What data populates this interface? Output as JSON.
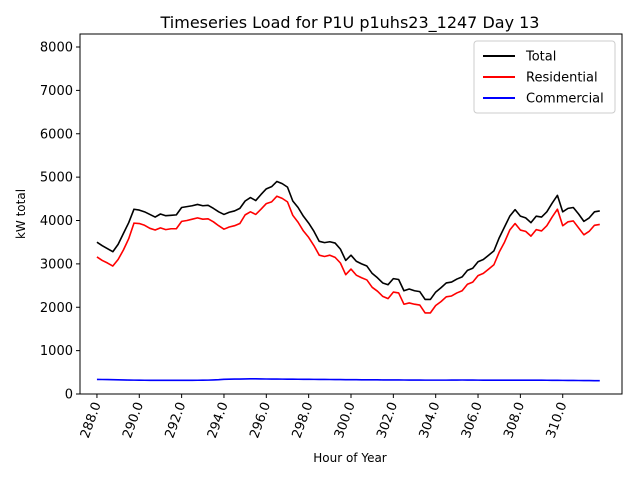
{
  "chart_data": {
    "type": "line",
    "title": "Timeseries Load for P1U p1uhs23_1247  Day 13",
    "xlabel": "Hour of Year",
    "ylabel": "kW total",
    "xlim": [
      287.2,
      312.8
    ],
    "ylim": [
      0,
      8300
    ],
    "x_ticks": [
      288,
      290,
      292,
      294,
      296,
      298,
      300,
      302,
      304,
      306,
      308,
      310
    ],
    "x_tick_labels": [
      "288.0",
      "290.0",
      "292.0",
      "294.0",
      "296.0",
      "298.0",
      "300.0",
      "302.0",
      "304.0",
      "306.0",
      "308.0",
      "310.0"
    ],
    "y_ticks": [
      0,
      1000,
      2000,
      3000,
      4000,
      5000,
      6000,
      7000,
      8000
    ],
    "y_tick_labels": [
      "0",
      "1000",
      "2000",
      "3000",
      "4000",
      "5000",
      "6000",
      "7000",
      "8000"
    ],
    "legend_position": "top-right",
    "x": [
      288.0,
      288.25,
      288.5,
      288.75,
      289.0,
      289.25,
      289.5,
      289.75,
      290.0,
      290.25,
      290.5,
      290.75,
      291.0,
      291.25,
      291.5,
      291.75,
      292.0,
      292.25,
      292.5,
      292.75,
      293.0,
      293.25,
      293.5,
      293.75,
      294.0,
      294.25,
      294.5,
      294.75,
      295.0,
      295.25,
      295.5,
      295.75,
      296.0,
      296.25,
      296.5,
      296.75,
      297.0,
      297.25,
      297.5,
      297.75,
      298.0,
      298.25,
      298.5,
      298.75,
      299.0,
      299.25,
      299.5,
      299.75,
      300.0,
      300.25,
      300.5,
      300.75,
      301.0,
      301.25,
      301.5,
      301.75,
      302.0,
      302.25,
      302.5,
      302.75,
      303.0,
      303.25,
      303.5,
      303.75,
      304.0,
      304.25,
      304.5,
      304.75,
      305.0,
      305.25,
      305.5,
      305.75,
      306.0,
      306.25,
      306.5,
      306.75,
      307.0,
      307.25,
      307.5,
      307.75,
      308.0,
      308.25,
      308.5,
      308.75,
      309.0,
      309.25,
      309.5,
      309.75,
      310.0,
      310.25,
      310.5,
      310.75,
      311.0,
      311.25,
      311.5,
      311.75
    ],
    "series": [
      {
        "name": "Total",
        "color": "#000000",
        "values": [
          3500,
          3420,
          3350,
          3280,
          3450,
          3700,
          3950,
          4260,
          4240,
          4200,
          4140,
          4080,
          4150,
          4110,
          4120,
          4130,
          4300,
          4320,
          4340,
          4370,
          4340,
          4350,
          4280,
          4200,
          4140,
          4190,
          4220,
          4280,
          4450,
          4530,
          4460,
          4600,
          4730,
          4780,
          4900,
          4850,
          4770,
          4450,
          4300,
          4100,
          3940,
          3750,
          3520,
          3490,
          3510,
          3480,
          3340,
          3080,
          3200,
          3060,
          3000,
          2950,
          2780,
          2680,
          2560,
          2520,
          2660,
          2640,
          2380,
          2420,
          2380,
          2360,
          2180,
          2180,
          2350,
          2450,
          2560,
          2580,
          2650,
          2700,
          2850,
          2900,
          3050,
          3100,
          3200,
          3300,
          3600,
          3850,
          4100,
          4250,
          4100,
          4060,
          3950,
          4100,
          4080,
          4200,
          4400,
          4580,
          4200,
          4280,
          4300,
          4150,
          3980,
          4060,
          4200,
          4220
        ]
      },
      {
        "name": "Residential",
        "color": "#ff0000",
        "values": [
          3160,
          3080,
          3020,
          2950,
          3100,
          3320,
          3580,
          3940,
          3930,
          3890,
          3820,
          3780,
          3830,
          3790,
          3810,
          3810,
          3980,
          4000,
          4030,
          4060,
          4030,
          4040,
          3970,
          3880,
          3800,
          3850,
          3880,
          3930,
          4130,
          4200,
          4140,
          4260,
          4390,
          4430,
          4560,
          4510,
          4430,
          4120,
          3960,
          3760,
          3610,
          3420,
          3200,
          3170,
          3200,
          3150,
          3020,
          2750,
          2880,
          2740,
          2680,
          2630,
          2460,
          2370,
          2250,
          2200,
          2350,
          2330,
          2070,
          2100,
          2070,
          2050,
          1870,
          1870,
          2040,
          2130,
          2240,
          2260,
          2330,
          2380,
          2530,
          2580,
          2730,
          2780,
          2880,
          2980,
          3270,
          3500,
          3780,
          3930,
          3780,
          3750,
          3640,
          3790,
          3760,
          3880,
          4080,
          4260,
          3880,
          3970,
          3990,
          3830,
          3670,
          3750,
          3890,
          3910
        ]
      },
      {
        "name": "Commercial",
        "color": "#0000ff",
        "values": [
          335,
          334,
          332,
          330,
          328,
          325,
          322,
          320,
          318,
          317,
          316,
          315,
          315,
          315,
          315,
          315,
          315,
          315,
          316,
          317,
          318,
          320,
          325,
          330,
          338,
          342,
          345,
          345,
          348,
          350,
          350,
          348,
          346,
          345,
          344,
          343,
          342,
          341,
          340,
          339,
          338,
          337,
          336,
          335,
          334,
          333,
          332,
          331,
          330,
          329,
          328,
          327,
          326,
          326,
          325,
          325,
          324,
          324,
          323,
          322,
          322,
          321,
          320,
          320,
          320,
          320,
          320,
          321,
          322,
          323,
          322,
          321,
          320,
          319,
          318,
          318,
          318,
          318,
          318,
          318,
          318,
          318,
          318,
          318,
          318,
          317,
          316,
          315,
          314,
          313,
          312,
          311,
          310,
          309,
          308,
          307
        ]
      }
    ]
  }
}
